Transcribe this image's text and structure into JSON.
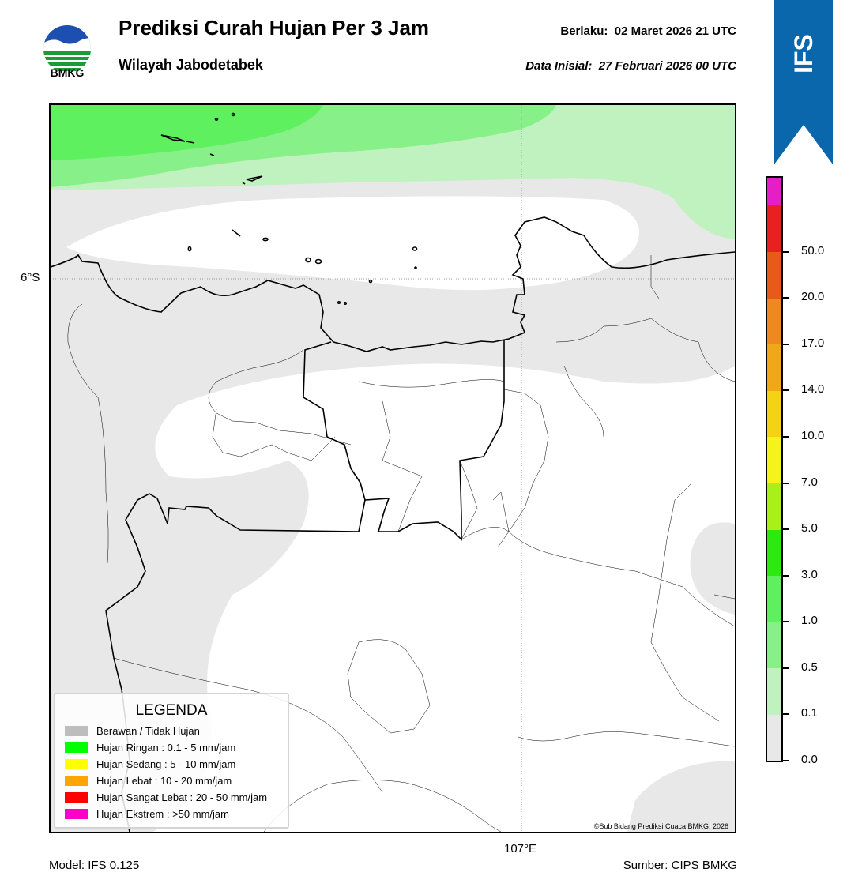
{
  "header": {
    "logo_text": "BMKG",
    "title": "Prediksi Curah Hujan Per 3 Jam",
    "subtitle": "Wilayah Jabodetabek",
    "valid_label": "Berlaku:",
    "valid_value": "02 Maret 2026 21 UTC",
    "init_label": "Data Inisial:",
    "init_value": "27 Februari 2026 00 UTC",
    "model_badge": "IFS"
  },
  "map": {
    "lat_label": "6°S",
    "lon_label": "107°E",
    "copyright": "©Sub Bidang Prediksi Cuaca BMKG, 2026"
  },
  "legend": {
    "title": "LEGENDA",
    "items": [
      {
        "label": "Berawan / Tidak Hujan",
        "color": "#bdbdbd"
      },
      {
        "label": "Hujan Ringan : 0.1 - 5 mm/jam",
        "color": "#00ff00"
      },
      {
        "label": "Hujan Sedang : 5 - 10 mm/jam",
        "color": "#ffff00"
      },
      {
        "label": "Hujan Lebat : 10 - 20 mm/jam",
        "color": "#ffa500"
      },
      {
        "label": "Hujan Sangat Lebat : 20 - 50 mm/jam",
        "color": "#ff0000"
      },
      {
        "label": "Hujan Ekstrem : >50 mm/jam",
        "color": "#ff00cc"
      }
    ]
  },
  "colorbar": {
    "labels": [
      "0.0",
      "0.1",
      "0.5",
      "1.0",
      "3.0",
      "5.0",
      "7.0",
      "10.0",
      "14.0",
      "17.0",
      "20.0",
      "50.0"
    ],
    "colors": [
      "#e8e8e8",
      "#c0f2c0",
      "#88f088",
      "#5ff060",
      "#2ee812",
      "#a8f018",
      "#f4f41a",
      "#f4d214",
      "#f0a818",
      "#ee8820",
      "#e85a18",
      "#e82020",
      "#e61ec8"
    ]
  },
  "footer": {
    "model": "Model: IFS 0.125",
    "source": "Sumber: CIPS BMKG"
  }
}
